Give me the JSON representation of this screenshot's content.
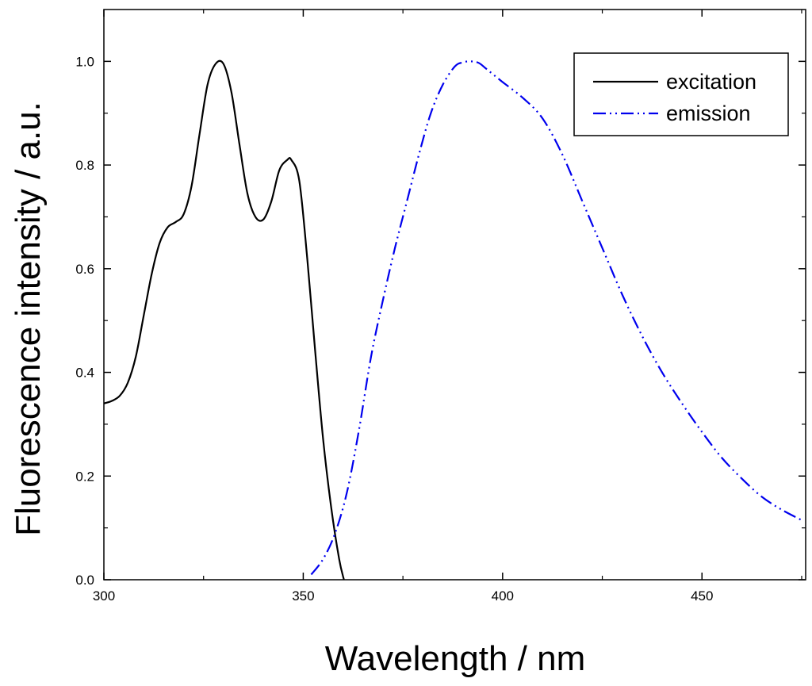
{
  "chart_data": {
    "type": "line",
    "title": "",
    "xlabel": "Wavelength / nm",
    "ylabel": "Fluorescence intensity  / a.u.",
    "xlim": [
      300,
      476
    ],
    "ylim": [
      0,
      1.1
    ],
    "x_ticks": [
      300,
      350,
      400,
      450
    ],
    "x_minor_ticks": [
      325,
      375,
      425,
      475
    ],
    "y_ticks": [
      0.0,
      0.2,
      0.4,
      0.6,
      0.8,
      1.0
    ],
    "y_tick_labels": [
      "0.0",
      "0.2",
      "0.4",
      "0.6",
      "0.8",
      "1.0"
    ],
    "y_minor_ticks": [
      0.1,
      0.3,
      0.5,
      0.7,
      0.9
    ],
    "legend_position": "top-right",
    "series": [
      {
        "name": "excitation",
        "color": "#000000",
        "style": "solid",
        "x": [
          300,
          302,
          304,
          306,
          308,
          310,
          312,
          314,
          316,
          318,
          320,
          322,
          324,
          326,
          328,
          330,
          332,
          334,
          336,
          338,
          340,
          342,
          344,
          346,
          347,
          349,
          351,
          353,
          355,
          357,
          359,
          360.2
        ],
        "y": [
          0.34,
          0.345,
          0.355,
          0.38,
          0.43,
          0.51,
          0.59,
          0.65,
          0.68,
          0.69,
          0.705,
          0.76,
          0.86,
          0.955,
          0.995,
          0.995,
          0.94,
          0.84,
          0.745,
          0.7,
          0.695,
          0.73,
          0.79,
          0.81,
          0.81,
          0.77,
          0.62,
          0.44,
          0.27,
          0.14,
          0.04,
          0.0
        ]
      },
      {
        "name": "emission",
        "color": "#0000ee",
        "style": "dash-dot-dot",
        "x": [
          352,
          355,
          358,
          361,
          364,
          367,
          370,
          373,
          376,
          379,
          382,
          385,
          388,
          390,
          392,
          394,
          396,
          400,
          405,
          410,
          415,
          420,
          425,
          430,
          435,
          440,
          445,
          450,
          455,
          460,
          465,
          470,
          475
        ],
        "y": [
          0.01,
          0.04,
          0.09,
          0.17,
          0.29,
          0.43,
          0.54,
          0.64,
          0.73,
          0.82,
          0.9,
          0.955,
          0.99,
          0.998,
          1.0,
          0.997,
          0.985,
          0.96,
          0.93,
          0.89,
          0.82,
          0.73,
          0.64,
          0.55,
          0.47,
          0.4,
          0.34,
          0.285,
          0.235,
          0.195,
          0.16,
          0.135,
          0.115
        ]
      }
    ]
  }
}
